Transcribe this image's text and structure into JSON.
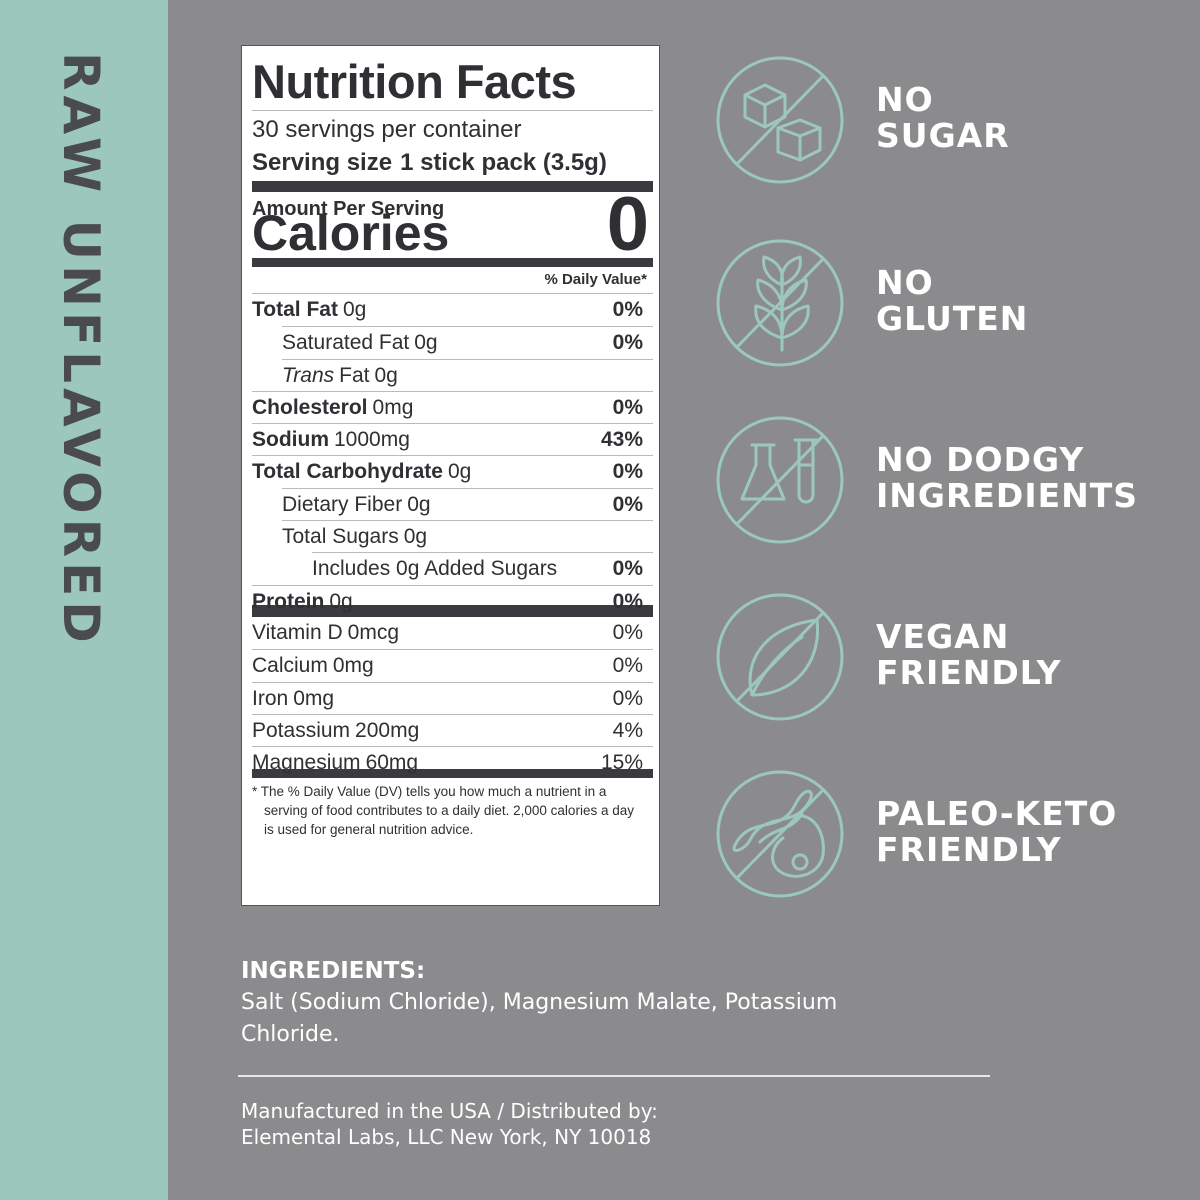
{
  "side_label": "RAW UNFLAVORED",
  "nutrition": {
    "title": "Nutrition Facts",
    "servings": "30 servings per container",
    "serving_size": {
      "label": "Serving size",
      "value": "1 stick pack (3.5g)"
    },
    "amount_per_serving": "Amount Per Serving",
    "calories": {
      "label": "Calories",
      "value": "0"
    },
    "dv_header": "% Daily Value*",
    "rows": [
      {
        "name": "Total Fat",
        "amount": "0g",
        "dv": "0%"
      },
      {
        "name": "Saturated Fat",
        "amount": "0g",
        "dv": "0%"
      },
      {
        "name_italic": "Trans",
        "name": "Fat",
        "amount": "0g"
      },
      {
        "name": "Cholesterol",
        "amount": "0mg",
        "dv": "0%"
      },
      {
        "name": "Sodium",
        "amount": "1000mg",
        "dv": "43%"
      },
      {
        "name": "Total Carbohydrate",
        "amount": "0g",
        "dv": "0%"
      },
      {
        "name": "Dietary Fiber",
        "amount": "0g",
        "dv": "0%"
      },
      {
        "name": "Total Sugars",
        "amount": "0g"
      },
      {
        "name": "Includes 0g Added Sugars",
        "dv": "0%"
      },
      {
        "name": "Protein",
        "amount": "0g",
        "dv": "0%"
      }
    ],
    "vitamins": [
      {
        "name": "Vitamin D",
        "amount": "0mcg",
        "dv": "0%"
      },
      {
        "name": "Calcium",
        "amount": "0mg",
        "dv": "0%"
      },
      {
        "name": "Iron",
        "amount": "0mg",
        "dv": "0%"
      },
      {
        "name": "Potassium",
        "amount": "200mg",
        "dv": "4%"
      },
      {
        "name": "Magnesium",
        "amount": "60mg",
        "dv": "15%"
      }
    ],
    "footnote": "* The % Daily Value (DV) tells you how much a nutrient in a serving of food contributes to a daily diet. 2,000 calories a day is used for general nutrition advice."
  },
  "claims": [
    {
      "lines": [
        "NO",
        "SUGAR"
      ]
    },
    {
      "lines": [
        "NO",
        "GLUTEN"
      ]
    },
    {
      "lines": [
        "NO DODGY",
        "INGREDIENTS"
      ]
    },
    {
      "lines": [
        "VEGAN",
        "FRIENDLY"
      ]
    },
    {
      "lines": [
        "PALEO-KETO",
        "FRIENDLY"
      ]
    }
  ],
  "ingredients": {
    "heading": "INGREDIENTS:",
    "text": "Salt (Sodium Chloride), Magnesium Malate, Potassium Chloride."
  },
  "manufacturer": [
    "Manufactured in the USA / Distributed by:",
    "Elemental Labs, LLC New York, NY 10018"
  ]
}
